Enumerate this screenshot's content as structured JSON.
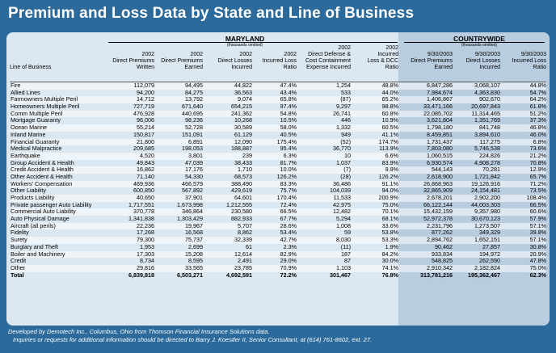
{
  "title": "Premium and Loss Data by State and Line of Business",
  "maryland": {
    "label": "MARYLAND",
    "units": "(thousands omitted)"
  },
  "countrywide": {
    "label": "COUNTRYWIDE",
    "units": "(thousands omitted)"
  },
  "columns": [
    {
      "l1": "",
      "l2": "",
      "l3": "",
      "l4": "Line of Business"
    },
    {
      "l1": "",
      "l2": "2002",
      "l3": "Direct Premiums",
      "l4": "Written"
    },
    {
      "l1": "",
      "l2": "2002",
      "l3": "Direct Premiums",
      "l4": "Earned"
    },
    {
      "l1": "",
      "l2": "2002",
      "l3": "Direct Losses",
      "l4": "Incurred"
    },
    {
      "l1": "",
      "l2": "2002",
      "l3": "Incurred Loss",
      "l4": "Ratio"
    },
    {
      "l1": "2002",
      "l2": "Direct Defense &",
      "l3": "Cost Containment",
      "l4": "Expense Incurred"
    },
    {
      "l1": "2002",
      "l2": "Incurred",
      "l3": "Loss & DCC",
      "l4": "Ratio"
    },
    {
      "l1": "",
      "l2": "9/30/2003",
      "l3": "Direct Premiums",
      "l4": "Earned"
    },
    {
      "l1": "",
      "l2": "9/30/2003",
      "l3": "Direct Losses",
      "l4": "Incurred"
    },
    {
      "l1": "",
      "l2": "9/30/2003",
      "l3": "Incurred Loss",
      "l4": "Ratio"
    }
  ],
  "rows": [
    [
      "Fire",
      "112,079",
      "94,495",
      "44,822",
      "47.4%",
      "1,254",
      "48.8%",
      "6,847,286",
      "3,068,107",
      "44.8%"
    ],
    [
      "Allied Lines",
      "94,200",
      "84,275",
      "36,563",
      "43.4%",
      "533",
      "44.0%",
      "7,984,674",
      "4,363,830",
      "54.7%"
    ],
    [
      "Farmowners Multiple Peril",
      "14,712",
      "13,792",
      "9,074",
      "65.8%",
      "(87)",
      "65.2%",
      "1,406,867",
      "902,670",
      "64.2%"
    ],
    [
      "Homeowners Multiple Peril",
      "727,719",
      "671,640",
      "654,215",
      "97.4%",
      "9,297",
      "98.8%",
      "33,471,166",
      "20,697,843",
      "61.8%"
    ],
    [
      "Comm Multiple Peril",
      "476,928",
      "440,695",
      "241,362",
      "54.8%",
      "26,741",
      "60.8%",
      "22,085,702",
      "11,314,465",
      "51.2%"
    ],
    [
      "Mortgage Guaranty",
      "96,006",
      "98,236",
      "10,268",
      "10.5%",
      "446",
      "10.9%",
      "3,621,804",
      "1,351,769",
      "37.3%"
    ],
    [
      "Ocean Marine",
      "55,214",
      "52,728",
      "30,589",
      "58.0%",
      "1,332",
      "60.5%",
      "1,798,180",
      "841,748",
      "46.8%"
    ],
    [
      "Inland Marine",
      "150,817",
      "151,091",
      "61,129",
      "40.5%",
      "949",
      "41.1%",
      "8,459,851",
      "3,894,610",
      "46.0%"
    ],
    [
      "Financial Guaranty",
      "21,800",
      "6,891",
      "12,090",
      "175.4%",
      "(52)",
      "174.7%",
      "1,731,437",
      "117,275",
      "6.8%"
    ],
    [
      "Medical Malpractice",
      "209,685",
      "198,053",
      "188,887",
      "95.4%",
      "36,770",
      "113.9%",
      "7,803,080",
      "5,746,538",
      "73.6%"
    ],
    [
      "Earthquake",
      "4,520",
      "3,801",
      "239",
      "6.3%",
      "10",
      "6.6%",
      "1,060,515",
      "224,826",
      "21.2%"
    ],
    [
      "Group Accident & Health",
      "49,843",
      "47,039",
      "38,433",
      "81.7%",
      "1,037",
      "83.9%",
      "6,930,574",
      "4,908,278",
      "70.8%"
    ],
    [
      "Credit Accident & Health",
      "16,862",
      "17,176",
      "1,710",
      "10.0%",
      "(7)",
      "9.9%",
      "544,143",
      "70,281",
      "12.9%"
    ],
    [
      "Other Accident & Health",
      "71,140",
      "54,330",
      "68,573",
      "126.2%",
      "(28)",
      "126.2%",
      "2,618,900",
      "1,721,842",
      "65.7%"
    ],
    [
      "Workers' Compensation",
      "469,936",
      "466,579",
      "388,490",
      "83.3%",
      "36,486",
      "91.1%",
      "26,868,963",
      "19,126,916",
      "71.2%"
    ],
    [
      "Other Liability",
      "600,850",
      "567,892",
      "429,619",
      "75.7%",
      "104,039",
      "94.0%",
      "32,865,909",
      "24,154,481",
      "73.5%"
    ],
    [
      "Products Liability",
      "40,650",
      "37,901",
      "64,601",
      "170.4%",
      "11,533",
      "200.9%",
      "2,678,201",
      "2,902,200",
      "108.4%"
    ],
    [
      "Private passenger Auto Liability",
      "1,717,551",
      "1,673,998",
      "1,212,555",
      "72.4%",
      "42,975",
      "75.0%",
      "66,122,144",
      "44,003,303",
      "66.5%"
    ],
    [
      "Commercial Auto Liability",
      "370,778",
      "346,864",
      "230,580",
      "66.5%",
      "12,482",
      "70.1%",
      "15,432,159",
      "9,357,980",
      "60.6%"
    ],
    [
      "Auto Physical Damage",
      "1,341,838",
      "1,303,429",
      "882,933",
      "67.7%",
      "5,294",
      "68.1%",
      "52,972,378",
      "30,670,123",
      "57.9%"
    ],
    [
      "Aircraft (all perils)",
      "22,236",
      "19,967",
      "5,707",
      "28.6%",
      "1,008",
      "33.6%",
      "2,231,796",
      "1,273,507",
      "57.1%"
    ],
    [
      "Fidelity",
      "17,268",
      "16,568",
      "8,862",
      "53.4%",
      "59",
      "53.8%",
      "877,262",
      "349,329",
      "39.8%"
    ],
    [
      "Surety",
      "79,300",
      "75,737",
      "32,339",
      "42.7%",
      "8,030",
      "53.3%",
      "2,894,762",
      "1,652,151",
      "57.1%"
    ],
    [
      "Burglary and Theft",
      "1,953",
      "2,699",
      "61",
      "2.3%",
      "(11)",
      "1.9%",
      "90,462",
      "27,857",
      "30.8%"
    ],
    [
      "Boiler and Machinery",
      "17,303",
      "15,208",
      "12,614",
      "82.9%",
      "187",
      "84.2%",
      "933,834",
      "194,972",
      "20.9%"
    ],
    [
      "Credit",
      "8,734",
      "8,595",
      "2,491",
      "29.0%",
      "87",
      "30.0%",
      "548,825",
      "262,590",
      "47.8%"
    ],
    [
      "Other",
      "29,816",
      "33,565",
      "23,785",
      "70.9%",
      "1,103",
      "74.1%",
      "2,910,342",
      "2,182,824",
      "75.0%"
    ],
    [
      "Total",
      "6,839,818",
      "6,503,271",
      "4,692,591",
      "72.2%",
      "301,467",
      "76.8%",
      "313,781,216",
      "195,362,467",
      "62.3%"
    ]
  ],
  "footer": {
    "line1": "Developed by Demotech Inc., Columbus, Ohio from Thomson Financial Insurance Solutions data.",
    "line2": "Inquiries or requests for additional information should be directed to Barry J. Koestler II, Senior Consultant, at (614) 761-8602, ext. 27."
  }
}
